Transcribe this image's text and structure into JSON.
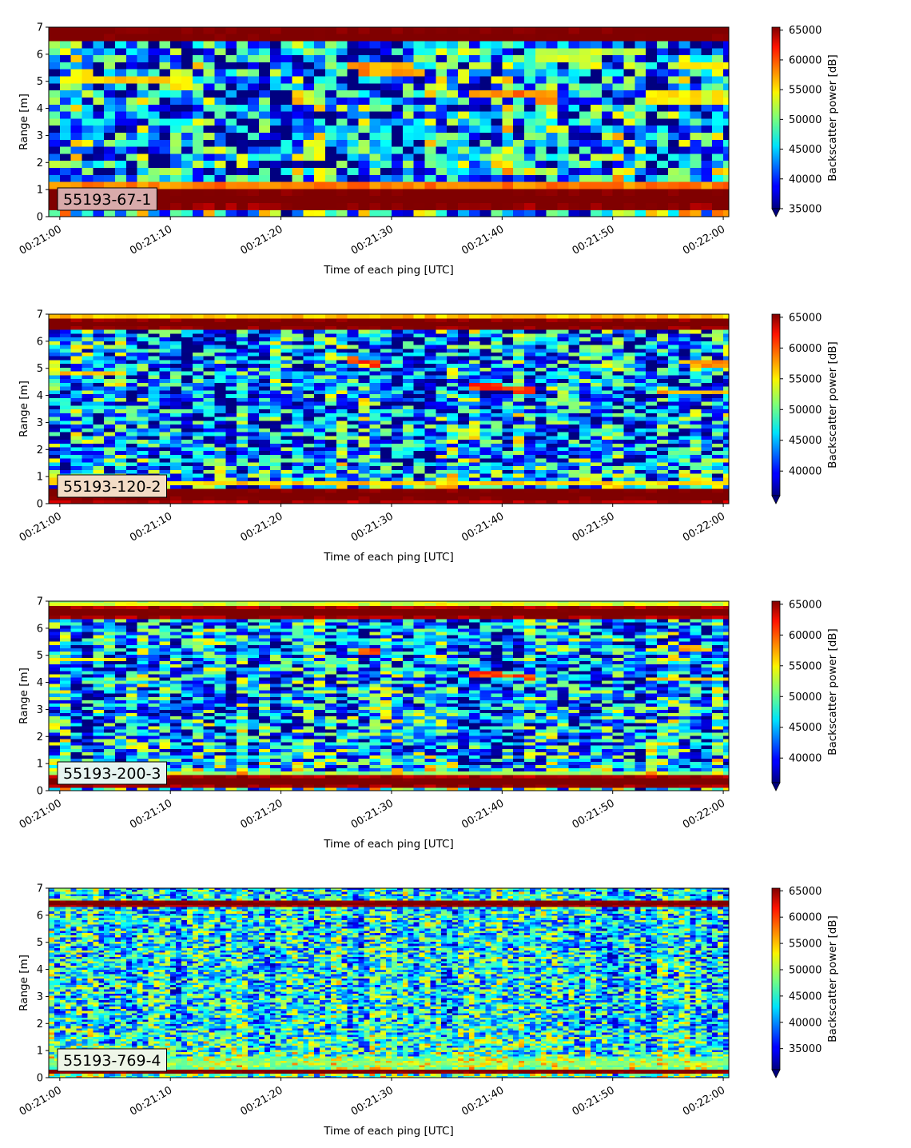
{
  "figure": {
    "xlabel": "Time of each ping [UTC]",
    "ylabel": "Range [m]",
    "colorbar_label": "Backscatter power [dB]",
    "x_tick_labels": [
      "00:21:00",
      "00:21:10",
      "00:21:20",
      "00:21:30",
      "00:21:40",
      "00:21:50",
      "00:22:00"
    ],
    "y_tick_labels": [
      "0",
      "1",
      "2",
      "3",
      "4",
      "5",
      "6",
      "7"
    ],
    "colormap": "jet"
  },
  "chart_data": [
    {
      "type": "heatmap",
      "label": "55193-67-1",
      "label_box_color": "#d8aaaa",
      "xlim_seconds": [
        -1,
        60.5
      ],
      "ylim": [
        0,
        7
      ],
      "clim": [
        35000,
        65500
      ],
      "colorbar_ticks": [
        "35000",
        "40000",
        "45000",
        "50000",
        "55000",
        "60000",
        "65000"
      ],
      "colorbar_tick_values": [
        35000,
        40000,
        45000,
        50000,
        55000,
        60000,
        65000
      ],
      "range_bin_m": 0.26,
      "ping_interval_s": 1,
      "noise_amp": 11000,
      "bands": [
        {
          "y": 6.75,
          "w": 0.32,
          "v": 68000
        },
        {
          "y": 0.7,
          "w": 0.45,
          "v": 68000
        },
        {
          "y": 1.25,
          "w": 0.15,
          "v": 60000
        },
        {
          "y": 0.23,
          "w": 0.05,
          "v": 58000
        }
      ],
      "traces": [
        {
          "t0": 0,
          "t1": 12,
          "y0": 5.05,
          "y1": 5.0,
          "w": 0.2,
          "v": 55000
        },
        {
          "t0": 26,
          "t1": 33,
          "y0": 5.55,
          "y1": 5.35,
          "w": 0.2,
          "v": 57000
        },
        {
          "t0": 37,
          "t1": 45,
          "y0": 4.6,
          "y1": 4.45,
          "w": 0.2,
          "v": 58000
        },
        {
          "t0": 44,
          "t1": 53,
          "y0": 6.0,
          "y1": 6.1,
          "w": 0.2,
          "v": 52000
        },
        {
          "t0": 53,
          "t1": 60.5,
          "y0": 4.4,
          "y1": 4.35,
          "w": 0.2,
          "v": 54000
        },
        {
          "t0": 56,
          "t1": 60.5,
          "y0": 5.55,
          "y1": 5.55,
          "w": 0.2,
          "v": 54000
        }
      ]
    },
    {
      "type": "heatmap",
      "label": "55193-120-2",
      "label_box_color": "#f3dcc6",
      "xlim_seconds": [
        -1,
        60.5
      ],
      "ylim": [
        0,
        7
      ],
      "clim": [
        36000,
        65500
      ],
      "colorbar_ticks": [
        "40000",
        "45000",
        "50000",
        "55000",
        "60000",
        "65000"
      ],
      "colorbar_tick_values": [
        40000,
        45000,
        50000,
        55000,
        60000,
        65000
      ],
      "range_bin_m": 0.14,
      "ping_interval_s": 1,
      "noise_amp": 10000,
      "bands": [
        {
          "y": 6.65,
          "w": 0.22,
          "v": 68000
        },
        {
          "y": 6.95,
          "w": 0.08,
          "v": 57000
        },
        {
          "y": 0.35,
          "w": 0.28,
          "v": 68000
        },
        {
          "y": 0.78,
          "w": 0.1,
          "v": 56000
        }
      ],
      "traces": [
        {
          "t0": 0,
          "t1": 6,
          "y0": 4.85,
          "y1": 4.85,
          "w": 0.12,
          "v": 56000
        },
        {
          "t0": 26,
          "t1": 29,
          "y0": 5.3,
          "y1": 5.15,
          "w": 0.12,
          "v": 60000
        },
        {
          "t0": 37,
          "t1": 43,
          "y0": 4.35,
          "y1": 4.2,
          "w": 0.12,
          "v": 60000
        },
        {
          "t0": 54,
          "t1": 60.5,
          "y0": 4.15,
          "y1": 4.15,
          "w": 0.12,
          "v": 57000
        },
        {
          "t0": 56,
          "t1": 60.5,
          "y0": 5.25,
          "y1": 5.15,
          "w": 0.12,
          "v": 57000
        }
      ]
    },
    {
      "type": "heatmap",
      "label": "55193-200-3",
      "label_box_color": "#e6f4f0",
      "xlim_seconds": [
        -1,
        60.5
      ],
      "ylim": [
        0,
        7
      ],
      "clim": [
        36000,
        65500
      ],
      "colorbar_ticks": [
        "40000",
        "45000",
        "50000",
        "55000",
        "60000",
        "65000"
      ],
      "colorbar_tick_values": [
        40000,
        45000,
        50000,
        55000,
        60000,
        65000
      ],
      "range_bin_m": 0.12,
      "ping_interval_s": 1,
      "noise_amp": 10000,
      "bands": [
        {
          "y": 6.6,
          "w": 0.2,
          "v": 68000
        },
        {
          "y": 6.95,
          "w": 0.08,
          "v": 56000
        },
        {
          "y": 0.35,
          "w": 0.2,
          "v": 68000
        },
        {
          "y": 0.6,
          "w": 0.08,
          "v": 54000
        }
      ],
      "traces": [
        {
          "t0": 0,
          "t1": 6,
          "y0": 4.85,
          "y1": 4.85,
          "w": 0.1,
          "v": 55000
        },
        {
          "t0": 27,
          "t1": 29,
          "y0": 5.2,
          "y1": 5.15,
          "w": 0.1,
          "v": 60000
        },
        {
          "t0": 37,
          "t1": 43,
          "y0": 4.35,
          "y1": 4.2,
          "w": 0.1,
          "v": 60000
        },
        {
          "t0": 53,
          "t1": 60.5,
          "y0": 4.15,
          "y1": 4.15,
          "w": 0.1,
          "v": 56000
        },
        {
          "t0": 56,
          "t1": 59,
          "y0": 5.3,
          "y1": 5.2,
          "w": 0.1,
          "v": 57000
        }
      ]
    },
    {
      "type": "heatmap",
      "label": "55193-769-4",
      "label_box_color": "#eef6e8",
      "xlim_seconds": [
        -1,
        60.5
      ],
      "ylim": [
        0,
        7
      ],
      "clim": [
        31000,
        65500
      ],
      "colorbar_ticks": [
        "35000",
        "40000",
        "45000",
        "50000",
        "55000",
        "60000",
        "65000"
      ],
      "colorbar_tick_values": [
        35000,
        40000,
        45000,
        50000,
        55000,
        60000,
        65000
      ],
      "range_bin_m": 0.08,
      "ping_interval_s": 0.5,
      "noise_amp": 9000,
      "bands": [
        {
          "y": 6.45,
          "w": 0.1,
          "v": 68000
        },
        {
          "y": 0.25,
          "w": 0.08,
          "v": 68000
        },
        {
          "y": 0.55,
          "w": 0.25,
          "v": 49000
        }
      ],
      "traces": [
        {
          "t0": 38,
          "t1": 42,
          "y0": 4.2,
          "y1": 4.2,
          "w": 0.08,
          "v": 45000
        }
      ]
    }
  ]
}
